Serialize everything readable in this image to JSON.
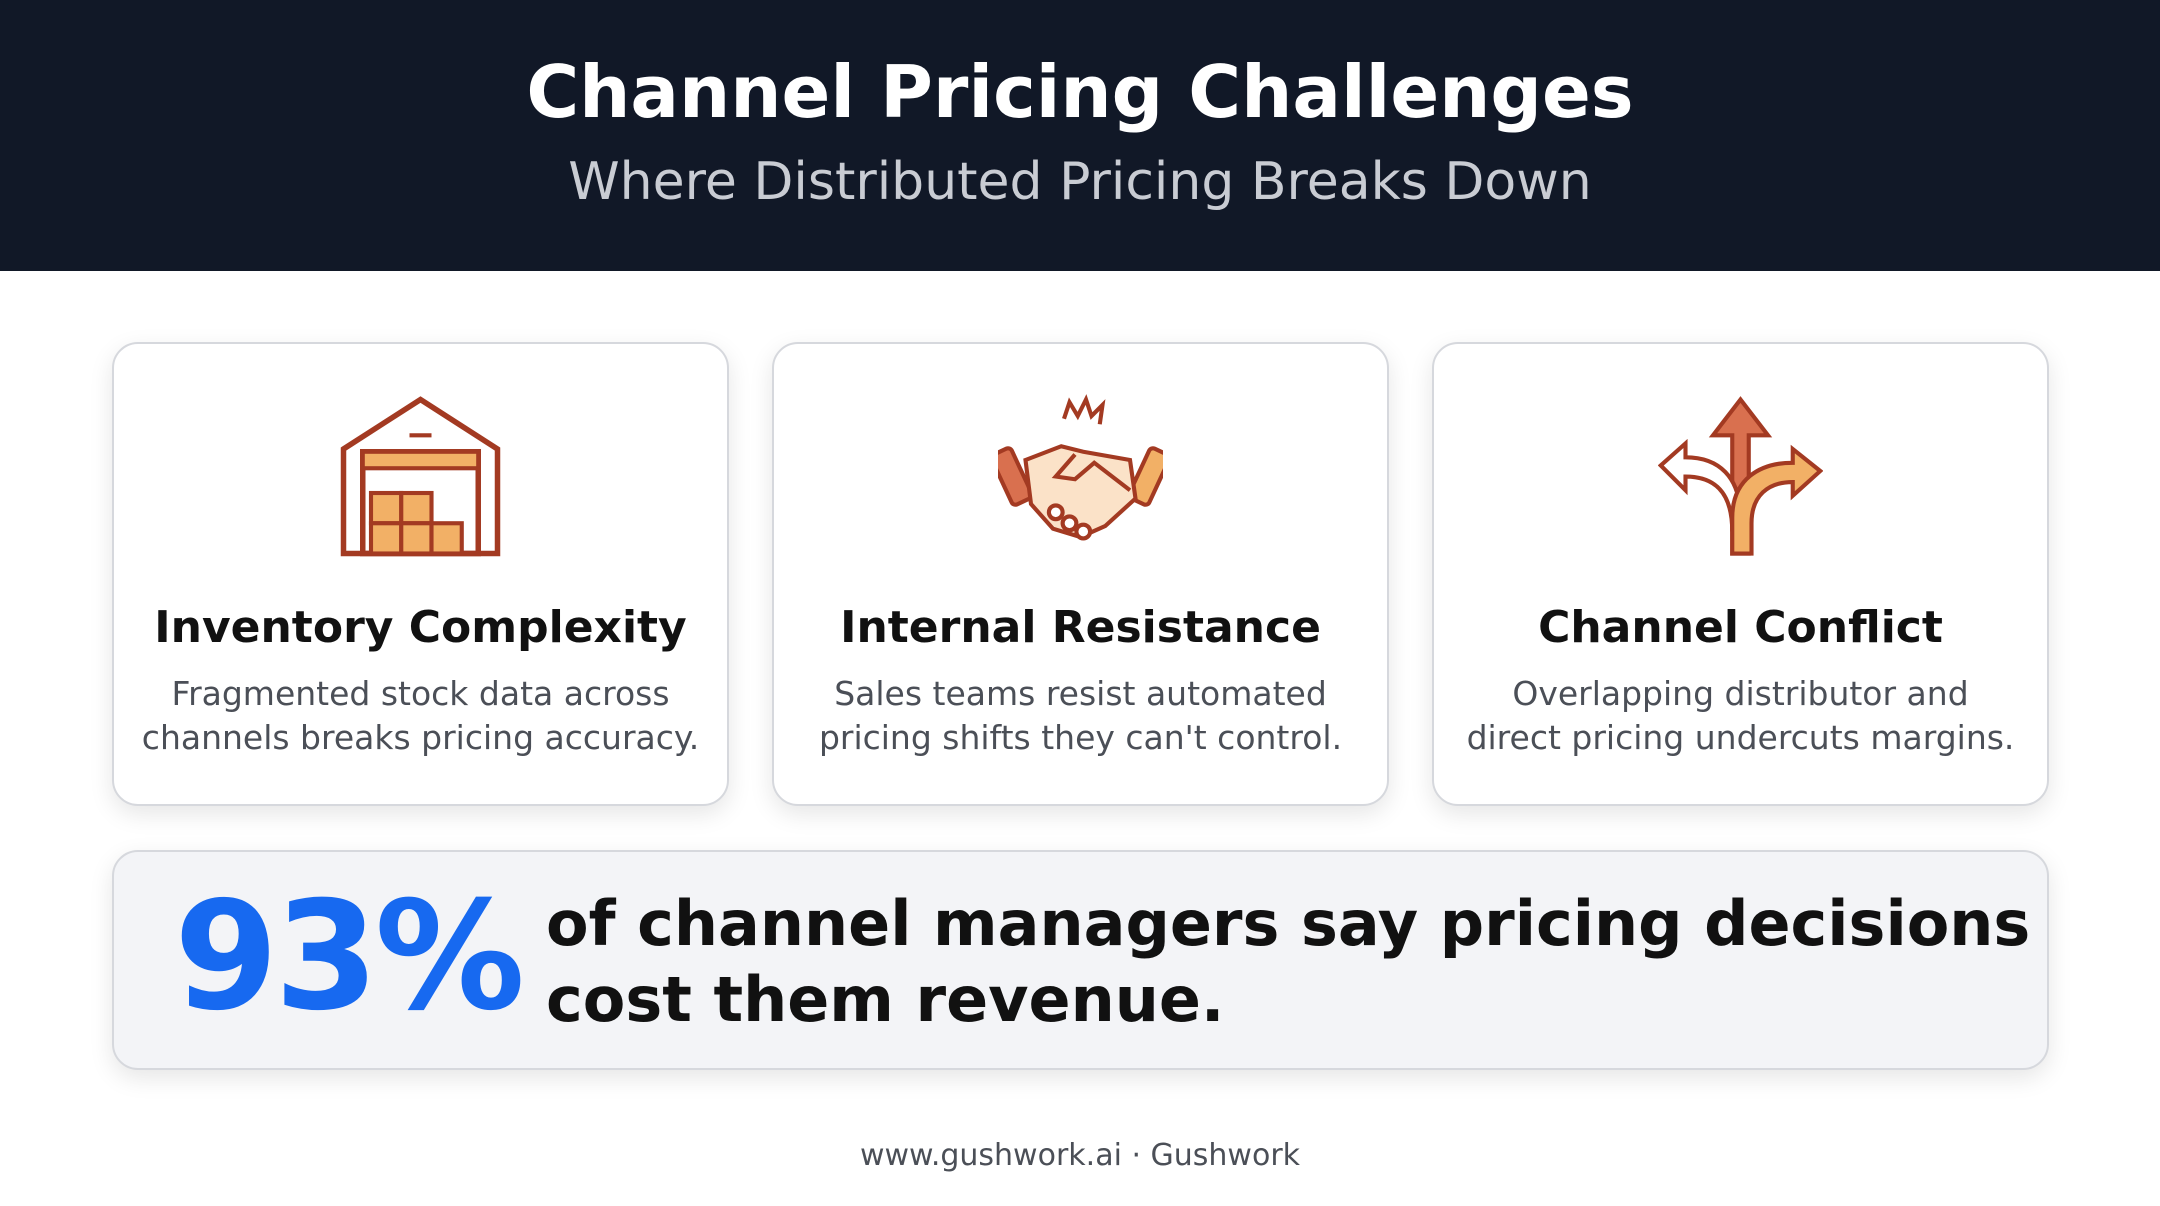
{
  "header": {
    "title": "Channel Pricing Challenges",
    "subtitle": "Where Distributed Pricing Breaks Down"
  },
  "cards": [
    {
      "title": "Inventory Complexity",
      "description": [
        "Fragmented stock data across",
        "channels breaks pricing accuracy."
      ]
    },
    {
      "title": "Internal Resistance",
      "description": [
        "Sales teams resist automated",
        "pricing shifts they can't control."
      ]
    },
    {
      "title": "Channel Conflict",
      "description": [
        "Overlapping distributor and",
        "direct pricing undercuts margins."
      ]
    }
  ],
  "stat": {
    "value": "93%",
    "text": [
      "of channel managers say pricing decisions",
      "cost them revenue."
    ]
  },
  "footer": "www.gushwork.ai · Gushwork"
}
